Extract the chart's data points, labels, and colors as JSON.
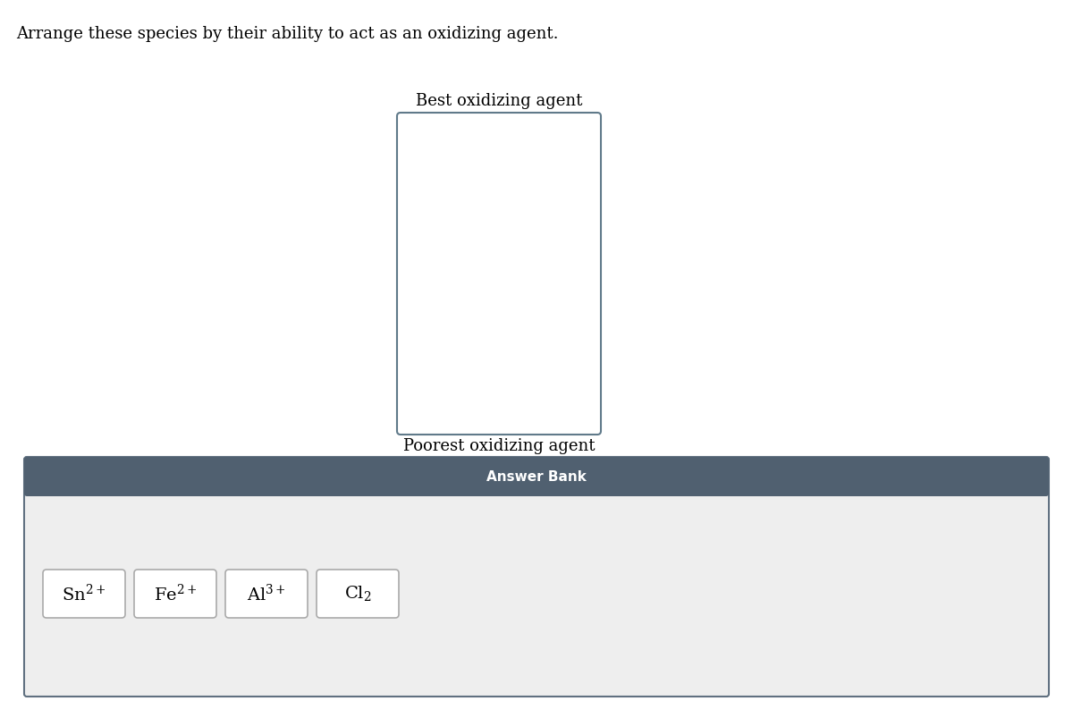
{
  "title": "Arrange these species by their ability to act as an oxidizing agent.",
  "title_fontsize": 13,
  "best_label": "Best oxidizing agent",
  "poorest_label": "Poorest oxidizing agent",
  "answer_bank_label": "Answer Bank",
  "answer_bank_bg": "#506070",
  "answer_bank_text_color": "#ffffff",
  "answer_bank_font_size": 11,
  "species_labels": [
    {
      "math": "$\\mathregular{Sn^{2+}}$"
    },
    {
      "math": "$\\mathregular{Fe^{2+}}$"
    },
    {
      "math": "$\\mathregular{Al^{3+}}$"
    },
    {
      "math": "$\\mathregular{Cl_2}$"
    }
  ],
  "bg_color": "#ffffff",
  "box_edge_color": "#607a8a",
  "answer_bank_outer_bg": "#eeeeee",
  "answer_bank_outer_border": "#607080",
  "species_font_size": 14,
  "label_font_size": 13
}
